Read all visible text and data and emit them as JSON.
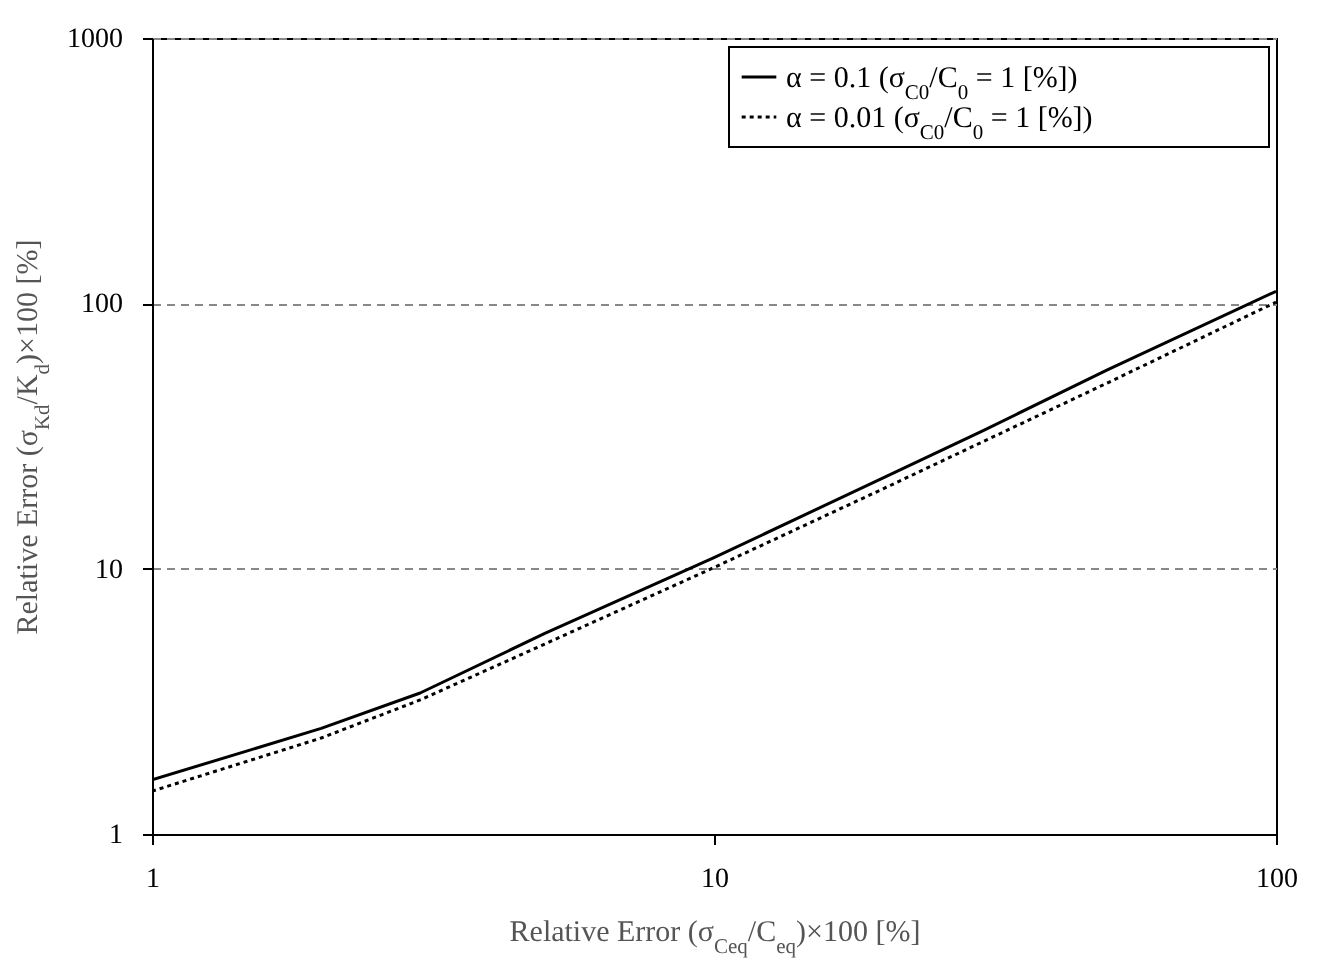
{
  "chart_data": {
    "type": "line",
    "xlabel": "Relative Error (σ$_{Ceq}$/C$_{eq}$)×100 [%]",
    "ylabel": "Relative Error (σ$_{Kd}$/K$_{d}$)×100 [%]",
    "x": [
      1,
      2,
      3,
      5,
      10,
      20,
      30,
      50,
      100
    ],
    "series": [
      {
        "name": "α = 0.1 (σ$_{C0}$/C$_{0}$ = 1 [%])",
        "color": "#000000",
        "line_style": "solid",
        "values": [
          1.6,
          2.5,
          3.4,
          5.7,
          11,
          22,
          33,
          56,
          111
        ]
      },
      {
        "name": "α = 0.01 (σ$_{C0}$/C$_{0}$ = 1 [%])",
        "color": "#000000",
        "line_style": "dotted",
        "values": [
          1.45,
          2.3,
          3.2,
          5.2,
          10.1,
          20,
          30,
          50,
          101
        ]
      }
    ],
    "log": "xy",
    "xlim": [
      1,
      100
    ],
    "xticks": [
      1,
      10,
      100
    ],
    "ylim": [
      1,
      1000
    ],
    "yticks": [
      1,
      10,
      100,
      1000
    ],
    "grid": "y",
    "legend": "top right",
    "marker": "none"
  }
}
